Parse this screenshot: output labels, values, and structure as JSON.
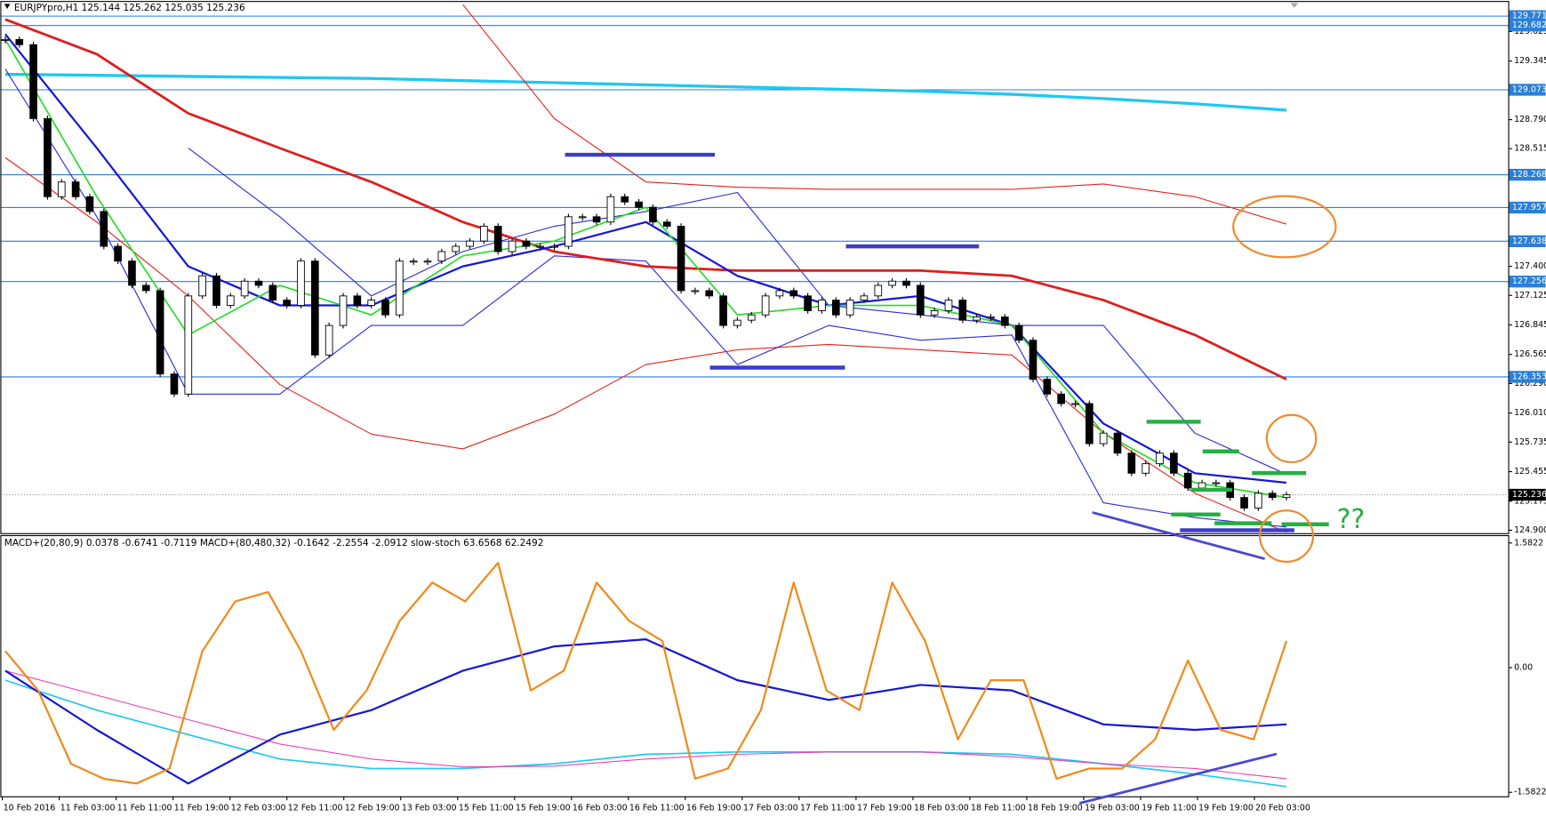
{
  "chart_data": {
    "type": "candlestick",
    "header": "EURJPYpro,H1  125.144 125.262 125.035 125.236",
    "sub_header": "MACD+(20,80,9) 0.0378 -0.6741 -0.7119  MACD+(80,480,32) -0.1642 -2.2554 -2.0912  slow-stoch 63.6568 62.2492",
    "annotation": "??",
    "ylim": [
      124.872,
      129.905
    ],
    "yticks": [
      129.625,
      129.345,
      {
        "value": 128.79,
        "label": "128.790"
      },
      128.515,
      {
        "value": 127.4,
        "label": "127.400"
      },
      127.125,
      126.845,
      126.565,
      {
        "value": 126.29,
        "label": "126.290"
      },
      {
        "value": 126.01,
        "label": "126.010"
      },
      125.735,
      125.455,
      125.175,
      {
        "value": 124.9,
        "label": "124.900"
      }
    ],
    "levels": [
      129.771,
      129.682,
      129.073,
      128.268,
      127.957,
      127.638,
      127.256,
      126.353
    ],
    "level_color": "#2a7fd6",
    "current_price": 125.236,
    "xticks": [
      "10 Feb 2016",
      "11 Feb 03:00",
      "11 Feb 11:00",
      "11 Feb 19:00",
      "12 Feb 03:00",
      "12 Feb 11:00",
      "12 Feb 19:00",
      "13 Feb 03:00",
      "15 Feb 11:00",
      "15 Feb 19:00",
      "16 Feb 03:00",
      "16 Feb 11:00",
      "16 Feb 19:00",
      "17 Feb 03:00",
      "17 Feb 11:00",
      "17 Feb 19:00",
      "18 Feb 03:00",
      "18 Feb 11:00",
      "18 Feb 19:00",
      "19 Feb 03:00",
      "19 Feb 11:00",
      "19 Feb 19:00",
      "20 Feb 03:00"
    ],
    "close": [
      129.55,
      129.5,
      128.8,
      128.06,
      128.2,
      128.06,
      127.92,
      127.59,
      127.45,
      127.22,
      127.17,
      126.38,
      126.19,
      127.12,
      127.31,
      127.03,
      127.12,
      127.26,
      127.22,
      127.08,
      127.03,
      127.45,
      126.56,
      126.84,
      127.12,
      127.03,
      127.08,
      126.94,
      127.45,
      127.45,
      127.45,
      127.54,
      127.59,
      127.64,
      127.78,
      127.54,
      127.64,
      127.59,
      127.59,
      127.59,
      127.87,
      127.87,
      127.82,
      128.06,
      128.01,
      127.96,
      127.82,
      127.78,
      127.17,
      127.17,
      127.12,
      126.84,
      126.89,
      126.94,
      127.12,
      127.17,
      127.12,
      126.98,
      127.08,
      126.94,
      127.08,
      127.12,
      127.22,
      127.26,
      127.22,
      126.94,
      126.98,
      127.08,
      126.89,
      126.92,
      126.92,
      126.84,
      126.7,
      126.33,
      126.19,
      126.1,
      126.1,
      125.72,
      125.82,
      125.63,
      125.44,
      125.53,
      125.63,
      125.44,
      125.3,
      125.35,
      125.35,
      125.21,
      125.11,
      125.25,
      125.21,
      125.236
    ],
    "lines": [
      {
        "color": "#1ec8f0",
        "width": 3,
        "values": [
          129.22,
          129.21,
          129.2,
          129.19,
          129.18,
          129.16,
          129.14,
          129.12,
          129.1,
          129.08,
          129.06,
          129.03,
          128.99,
          128.94,
          128.88
        ]
      },
      {
        "color": "#e8221c",
        "width": 1,
        "values": [
          null,
          null,
          null,
          null,
          null,
          129.88,
          128.8,
          128.2,
          128.15,
          128.13,
          128.13,
          128.13,
          128.18,
          128.06,
          127.8
        ]
      },
      {
        "color": "#e8221c",
        "width": 1,
        "values": [
          128.43,
          127.82,
          127.12,
          126.28,
          125.81,
          125.67,
          126.0,
          126.47,
          126.61,
          126.66,
          126.61,
          126.56,
          125.82,
          125.25,
          124.88
        ]
      },
      {
        "color": "#2a2ae0",
        "width": 1,
        "values": [
          null,
          null,
          128.52,
          127.87,
          127.12,
          127.54,
          127.78,
          127.92,
          128.1,
          127.03,
          126.94,
          126.84,
          126.84,
          125.82,
          125.43
        ]
      },
      {
        "color": "#2a2ae0",
        "width": 1,
        "values": [
          129.27,
          127.87,
          126.19,
          126.19,
          126.84,
          126.84,
          127.5,
          127.45,
          126.47,
          126.84,
          126.7,
          126.75,
          125.16,
          125.02,
          124.93
        ]
      },
      {
        "color": "#e01c1c",
        "width": 2.5,
        "values": [
          129.74,
          129.41,
          128.85,
          128.52,
          128.2,
          127.82,
          127.54,
          127.4,
          127.36,
          127.36,
          127.36,
          127.31,
          127.08,
          126.75,
          126.33
        ]
      },
      {
        "color": "#1616d8",
        "width": 2,
        "values": [
          129.6,
          128.52,
          127.4,
          127.03,
          127.03,
          127.4,
          127.59,
          127.82,
          127.31,
          127.03,
          127.12,
          126.84,
          125.91,
          125.44,
          125.35
        ]
      },
      {
        "color": "#22dd22",
        "width": 1.5,
        "values": [
          129.55,
          128.06,
          126.75,
          127.22,
          126.94,
          127.5,
          127.64,
          127.96,
          126.94,
          127.03,
          127.03,
          126.84,
          125.82,
          125.35,
          125.21
        ]
      }
    ],
    "y2lim": [
      -1.633,
      1.669
    ],
    "y2ticks": [
      1.5822,
      {
        "value": 0,
        "label": "0.00"
      },
      -1.5822
    ],
    "sub_lines": [
      {
        "color": "#1ec8f0",
        "width": 1.5,
        "values": [
          -0.16,
          -0.54,
          -0.85,
          -1.16,
          -1.28,
          -1.28,
          -1.22,
          -1.1,
          -1.07,
          -1.07,
          -1.07,
          -1.1,
          -1.22,
          -1.35,
          -1.51
        ]
      },
      {
        "color": "#f040b0",
        "width": 1,
        "values": [
          -0.04,
          -0.35,
          -0.66,
          -0.97,
          -1.16,
          -1.26,
          -1.25,
          -1.16,
          -1.1,
          -1.07,
          -1.07,
          -1.13,
          -1.22,
          -1.28,
          -1.41
        ]
      },
      {
        "color": "#1616d8",
        "width": 2,
        "values": [
          -0.04,
          -0.79,
          -1.47,
          -0.85,
          -0.54,
          -0.04,
          0.27,
          0.36,
          -0.16,
          -0.41,
          -0.22,
          -0.29,
          -0.72,
          -0.79,
          -0.72
        ]
      },
      {
        "color": "#f08a1c",
        "width": 2,
        "values": [
          0.21,
          -0.29,
          -1.22,
          -1.41,
          -1.47,
          -1.28,
          0.21,
          0.84,
          0.96,
          0.21,
          -0.79,
          -0.29,
          0.59,
          1.08,
          0.84,
          1.33,
          -0.29,
          -0.04,
          1.08,
          0.59,
          0.34,
          -1.41,
          -1.28,
          -0.54,
          1.08,
          -0.29,
          -0.54,
          1.08,
          0.34,
          -0.91,
          -0.16,
          -0.16,
          -1.41,
          -1.28,
          -1.28,
          -0.91,
          0.09,
          -0.79,
          -0.91,
          0.34
        ]
      }
    ]
  }
}
